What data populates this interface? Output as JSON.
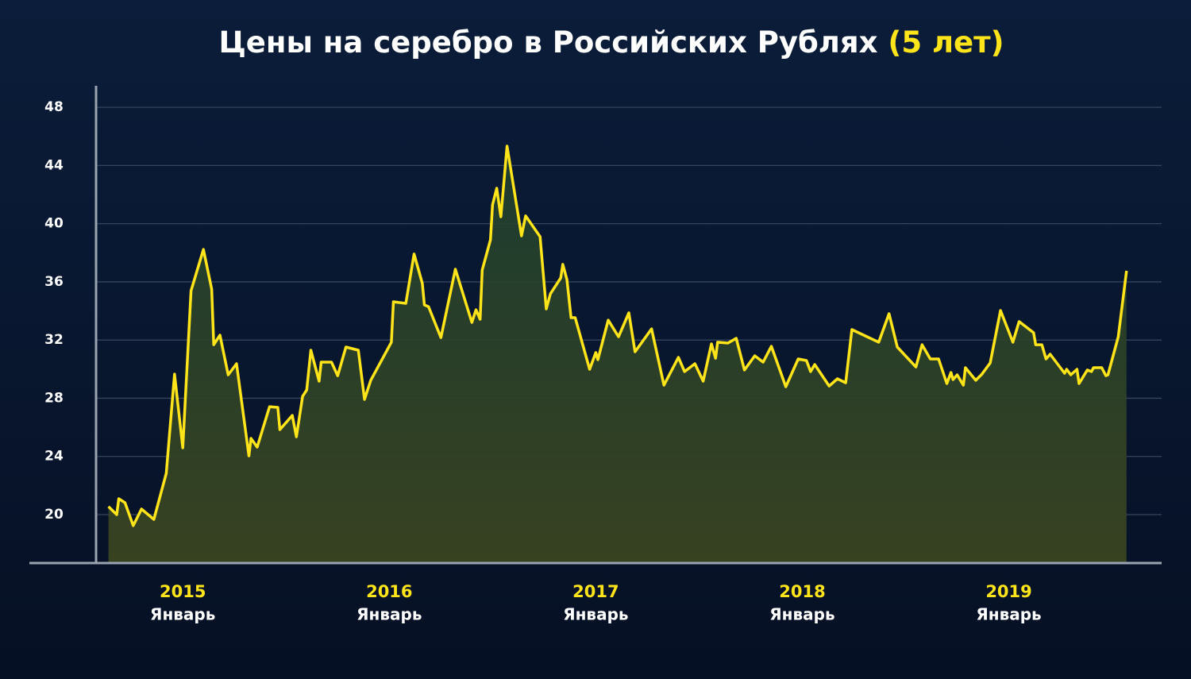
{
  "chart_data": {
    "type": "line",
    "title": "Цены на серебро в Российских Рублях",
    "title_highlight": "(5 лет)",
    "title_highlight_color": "#ffe41a",
    "x": [
      2014.64,
      2014.68,
      2014.69,
      2014.72,
      2014.76,
      2014.8,
      2014.86,
      2014.92,
      2014.96,
      2015.0,
      2015.04,
      2015.1,
      2015.14,
      2015.15,
      2015.18,
      2015.22,
      2015.26,
      2015.32,
      2015.33,
      2015.36,
      2015.42,
      2015.46,
      2015.47,
      2015.53,
      2015.55,
      2015.58,
      2015.6,
      2015.62,
      2015.66,
      2015.67,
      2015.72,
      2015.75,
      2015.79,
      2015.85,
      2015.88,
      2015.91,
      2016.01,
      2016.02,
      2016.08,
      2016.12,
      2016.16,
      2016.17,
      2016.19,
      2016.25,
      2016.32,
      2016.4,
      2016.42,
      2016.44,
      2016.45,
      2016.49,
      2016.5,
      2016.52,
      2016.54,
      2016.57,
      2016.64,
      2016.66,
      2016.73,
      2016.76,
      2016.78,
      2016.83,
      2016.84,
      2016.86,
      2016.88,
      2016.9,
      2016.97,
      2017.0,
      2017.01,
      2017.06,
      2017.11,
      2017.16,
      2017.19,
      2017.27,
      2017.33,
      2017.4,
      2017.43,
      2017.48,
      2017.52,
      2017.56,
      2017.58,
      2017.59,
      2017.64,
      2017.68,
      2017.72,
      2017.77,
      2017.81,
      2017.85,
      2017.92,
      2017.98,
      2018.02,
      2018.04,
      2018.06,
      2018.13,
      2018.17,
      2018.21,
      2018.24,
      2018.37,
      2018.42,
      2018.46,
      2018.55,
      2018.58,
      2018.62,
      2018.66,
      2018.7,
      2018.72,
      2018.73,
      2018.75,
      2018.78,
      2018.79,
      2018.84,
      2018.87,
      2018.91,
      2018.96,
      2019.02,
      2019.05,
      2019.12,
      2019.13,
      2019.16,
      2019.18,
      2019.2,
      2019.27,
      2019.28,
      2019.3,
      2019.33,
      2019.34,
      2019.38,
      2019.4,
      2019.41,
      2019.45,
      2019.47,
      2019.48,
      2019.53,
      2019.57
    ],
    "series": [
      {
        "color": "#ffe41a",
        "values": [
          20.55,
          20.0,
          21.09,
          20.82,
          19.24,
          20.38,
          19.67,
          22.84,
          29.66,
          24.59,
          35.39,
          38.23,
          35.5,
          31.68,
          32.34,
          29.61,
          30.37,
          24.04,
          25.24,
          24.64,
          27.42,
          27.37,
          25.84,
          26.82,
          25.35,
          28.13,
          28.57,
          31.3,
          29.17,
          30.48,
          30.48,
          29.55,
          31.52,
          31.3,
          27.92,
          29.23,
          31.85,
          34.63,
          34.52,
          37.91,
          35.89,
          34.41,
          34.3,
          32.17,
          36.87,
          33.21,
          34.08,
          33.43,
          36.81,
          38.89,
          41.29,
          42.44,
          40.47,
          45.33,
          39.16,
          40.53,
          39.11,
          34.14,
          35.18,
          36.27,
          37.2,
          36.16,
          33.54,
          33.54,
          29.99,
          31.14,
          30.65,
          33.37,
          32.23,
          33.87,
          31.19,
          32.77,
          28.9,
          30.81,
          29.83,
          30.37,
          29.17,
          31.74,
          30.75,
          31.85,
          31.79,
          32.12,
          29.94,
          30.92,
          30.48,
          31.57,
          28.79,
          30.7,
          30.59,
          29.83,
          30.32,
          28.84,
          29.34,
          29.06,
          32.72,
          31.85,
          33.81,
          31.52,
          30.15,
          31.68,
          30.7,
          30.7,
          29.01,
          29.77,
          29.28,
          29.61,
          28.9,
          30.1,
          29.23,
          29.66,
          30.43,
          34.03,
          31.85,
          33.27,
          32.5,
          31.68,
          31.68,
          30.7,
          31.03,
          29.72,
          29.99,
          29.61,
          29.99,
          29.01,
          29.94,
          29.83,
          30.1,
          30.1,
          29.55,
          29.61,
          32.23,
          36.76
        ]
      }
    ],
    "xlim": [
      2014.58,
      2019.74
    ],
    "xticks": [
      2015,
      2016,
      2017,
      2018,
      2019
    ],
    "xtick_sublabels": [
      "Январь",
      "Январь",
      "Январь",
      "Январь",
      "Январь"
    ],
    "ylim": [
      16.67,
      49.48
    ],
    "yticks": [
      20,
      24,
      28,
      32,
      36,
      40,
      44,
      48
    ],
    "grid": true
  }
}
